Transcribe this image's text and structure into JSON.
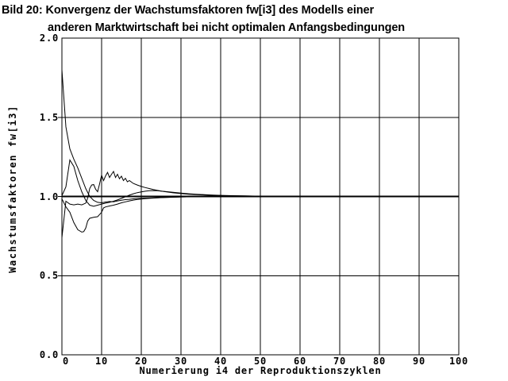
{
  "title": {
    "line1": "Bild 20: Konvergenz der Wachstumsfaktoren fw[i3] des Modells einer",
    "line2": "anderen Marktwirtschaft bei nicht optimalen Anfangsbedingungen"
  },
  "colors": {
    "foreground": "#000000",
    "background": "#ffffff"
  },
  "chart_data": {
    "type": "line",
    "title": "Bild 20: Konvergenz der Wachstumsfaktoren fw[i3] des Modells einer anderen Marktwirtschaft bei nicht optimalen Anfangsbedingungen",
    "xlabel": "Numerierung i4 der Reproduktionszyklen",
    "ylabel": "Wachstumsfaktoren fw[i3]",
    "xlim": [
      0,
      100
    ],
    "ylim": [
      0.0,
      2.0
    ],
    "xticks": [
      0,
      10,
      20,
      30,
      40,
      50,
      60,
      70,
      80,
      90,
      100
    ],
    "xtick_labels": [
      "0",
      "10",
      "20",
      "30",
      "40",
      "50",
      "60",
      "70",
      "80",
      "90",
      "100"
    ],
    "yticks": [
      0.0,
      0.5,
      1.0,
      1.5,
      2.0
    ],
    "ytick_labels": [
      "0.0",
      "0.5",
      "1.0",
      "1.5",
      "2.0"
    ],
    "grid": true,
    "legend": false,
    "line_color": "#000000",
    "series": [
      {
        "name": "series-1-high-start",
        "width": 1,
        "points": [
          [
            0,
            1.8
          ],
          [
            1,
            1.44
          ],
          [
            2,
            1.3
          ],
          [
            3,
            1.235
          ],
          [
            4,
            1.18
          ],
          [
            5,
            1.115
          ],
          [
            6,
            1.05
          ],
          [
            7,
            1.0
          ],
          [
            8,
            0.975
          ],
          [
            9,
            0.963
          ],
          [
            10,
            0.96
          ],
          [
            11,
            0.965
          ],
          [
            12,
            0.968
          ],
          [
            13,
            0.966
          ],
          [
            14,
            0.972
          ],
          [
            15,
            0.976
          ],
          [
            16,
            0.98
          ],
          [
            17,
            0.982
          ],
          [
            18,
            0.985
          ],
          [
            20,
            0.988
          ],
          [
            22,
            0.99
          ],
          [
            24,
            0.992
          ],
          [
            26,
            0.994
          ],
          [
            28,
            0.995
          ],
          [
            30,
            0.997
          ],
          [
            33,
            0.998
          ],
          [
            36,
            0.999
          ],
          [
            40,
            1.0
          ],
          [
            100,
            1.0
          ]
        ]
      },
      {
        "name": "series-2-early-peak",
        "width": 1,
        "points": [
          [
            0,
            1.005
          ],
          [
            1,
            1.06
          ],
          [
            2,
            1.23
          ],
          [
            3,
            1.19
          ],
          [
            4,
            1.1
          ],
          [
            5,
            1.03
          ],
          [
            6,
            0.975
          ],
          [
            7,
            0.945
          ],
          [
            8,
            0.938
          ],
          [
            9,
            0.945
          ],
          [
            10,
            0.952
          ],
          [
            11,
            0.958
          ],
          [
            12,
            0.963
          ],
          [
            13,
            0.97
          ],
          [
            14,
            0.978
          ],
          [
            15,
            0.988
          ],
          [
            16,
            0.998
          ],
          [
            17,
            1.008
          ],
          [
            18,
            1.017
          ],
          [
            19,
            1.024
          ],
          [
            20,
            1.029
          ],
          [
            21,
            1.033
          ],
          [
            22,
            1.036
          ],
          [
            23,
            1.037
          ],
          [
            24,
            1.036
          ],
          [
            25,
            1.034
          ],
          [
            26,
            1.031
          ],
          [
            28,
            1.026
          ],
          [
            30,
            1.021
          ],
          [
            32,
            1.017
          ],
          [
            34,
            1.014
          ],
          [
            36,
            1.011
          ],
          [
            38,
            1.009
          ],
          [
            40,
            1.007
          ],
          [
            43,
            1.005
          ],
          [
            46,
            1.0035
          ],
          [
            50,
            1.002
          ],
          [
            54,
            1.001
          ],
          [
            58,
            1.0005
          ],
          [
            62,
            1.0
          ],
          [
            100,
            1.0
          ]
        ]
      },
      {
        "name": "series-3-jagged",
        "width": 1,
        "points": [
          [
            0,
            0.74
          ],
          [
            1,
            0.97
          ],
          [
            2,
            0.952
          ],
          [
            3,
            0.947
          ],
          [
            4,
            0.952
          ],
          [
            5,
            0.947
          ],
          [
            6,
            0.958
          ],
          [
            6.5,
            0.99
          ],
          [
            7,
            1.05
          ],
          [
            7.5,
            1.072
          ],
          [
            8,
            1.075
          ],
          [
            8.5,
            1.045
          ],
          [
            9,
            1.03
          ],
          [
            9.5,
            1.08
          ],
          [
            10,
            1.135
          ],
          [
            10.5,
            1.1
          ],
          [
            11,
            1.13
          ],
          [
            11.5,
            1.152
          ],
          [
            12,
            1.12
          ],
          [
            12.5,
            1.14
          ],
          [
            13,
            1.158
          ],
          [
            13.5,
            1.12
          ],
          [
            14,
            1.14
          ],
          [
            14.5,
            1.112
          ],
          [
            15,
            1.128
          ],
          [
            15.5,
            1.1
          ],
          [
            16,
            1.115
          ],
          [
            16.5,
            1.092
          ],
          [
            17,
            1.1
          ],
          [
            18,
            1.082
          ],
          [
            19,
            1.072
          ],
          [
            20,
            1.063
          ],
          [
            21,
            1.056
          ],
          [
            22,
            1.05
          ],
          [
            23,
            1.044
          ],
          [
            24,
            1.039
          ],
          [
            25,
            1.034
          ],
          [
            26,
            1.03
          ],
          [
            28,
            1.023
          ],
          [
            30,
            1.018
          ],
          [
            32,
            1.014
          ],
          [
            34,
            1.011
          ],
          [
            36,
            1.009
          ],
          [
            38,
            1.007
          ],
          [
            40,
            1.0055
          ],
          [
            43,
            1.004
          ],
          [
            46,
            1.003
          ],
          [
            50,
            1.002
          ],
          [
            54,
            1.0012
          ],
          [
            58,
            1.0006
          ],
          [
            62,
            1.0
          ],
          [
            100,
            1.0
          ]
        ]
      },
      {
        "name": "series-4-deep-dip",
        "width": 1,
        "points": [
          [
            0,
            0.985
          ],
          [
            1,
            0.935
          ],
          [
            2,
            0.9
          ],
          [
            3,
            0.835
          ],
          [
            4,
            0.79
          ],
          [
            5,
            0.775
          ],
          [
            5.5,
            0.778
          ],
          [
            6,
            0.8
          ],
          [
            6.5,
            0.845
          ],
          [
            7,
            0.862
          ],
          [
            8,
            0.868
          ],
          [
            9,
            0.872
          ],
          [
            9.5,
            0.886
          ],
          [
            10,
            0.9
          ],
          [
            10.5,
            0.928
          ],
          [
            11,
            0.934
          ],
          [
            12,
            0.94
          ],
          [
            13,
            0.945
          ],
          [
            14,
            0.952
          ],
          [
            15,
            0.96
          ],
          [
            16,
            0.966
          ],
          [
            17,
            0.972
          ],
          [
            18,
            0.977
          ],
          [
            19,
            0.981
          ],
          [
            20,
            0.984
          ],
          [
            22,
            0.988
          ],
          [
            24,
            0.991
          ],
          [
            26,
            0.9935
          ],
          [
            28,
            0.9955
          ],
          [
            30,
            0.997
          ],
          [
            33,
            0.998
          ],
          [
            36,
            0.999
          ],
          [
            40,
            0.9995
          ],
          [
            44,
            1.0
          ],
          [
            100,
            1.0
          ]
        ]
      },
      {
        "name": "series-5-equilibrium",
        "width": 2,
        "points": [
          [
            0,
            1.0
          ],
          [
            100,
            1.0
          ]
        ]
      }
    ]
  }
}
